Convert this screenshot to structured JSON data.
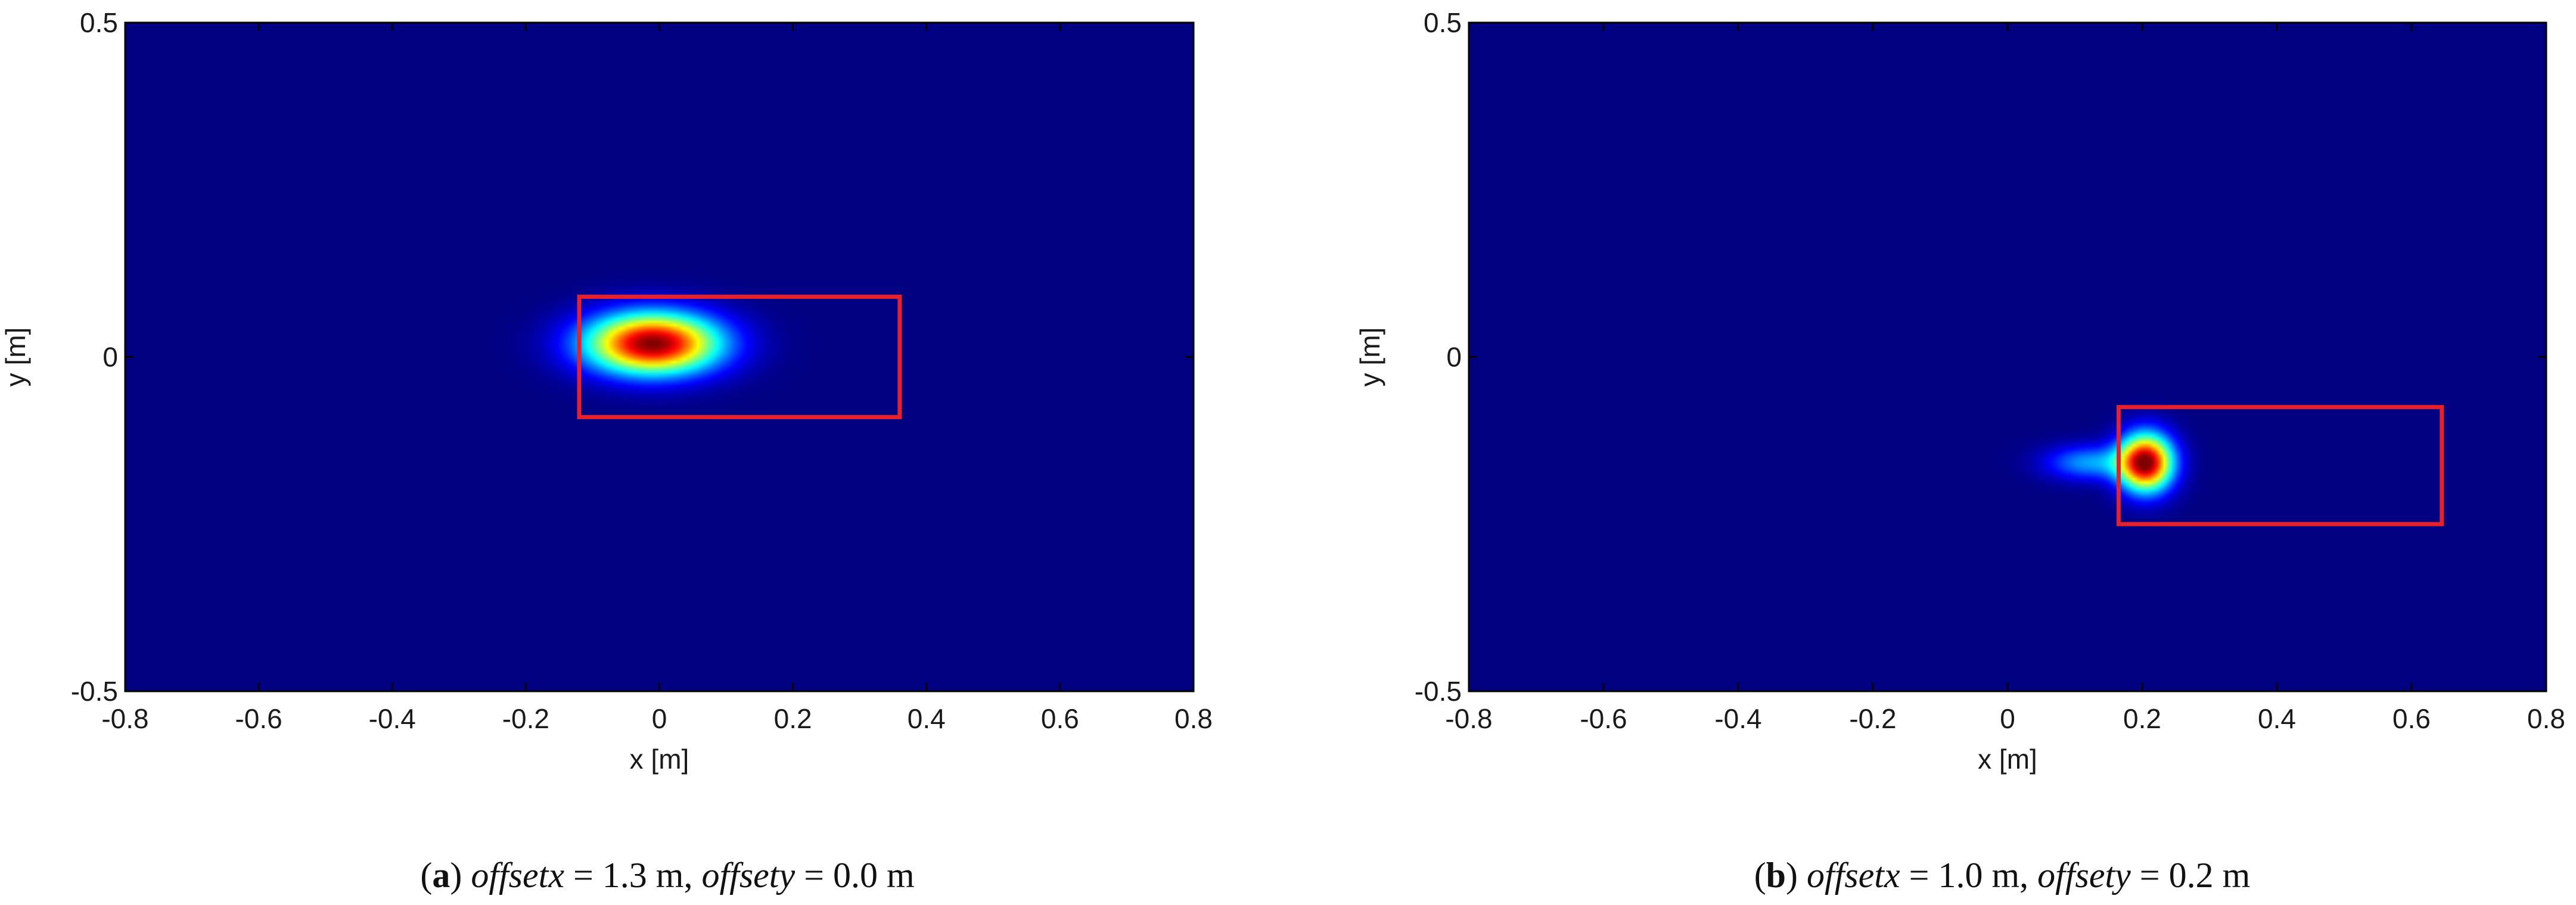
{
  "chart_data": [
    {
      "type": "heatmap",
      "panel_label": "a",
      "caption": {
        "label": "a",
        "parts": [
          {
            "text": "offsetx",
            "style": "italic"
          },
          {
            "text": " = 1.3 m, ",
            "style": "normal"
          },
          {
            "text": "offsety",
            "style": "italic"
          },
          {
            "text": " = 0.0 m",
            "style": "normal"
          }
        ]
      },
      "xlabel": "x [m]",
      "ylabel": "y [m]",
      "xlim": [
        -0.8,
        0.8
      ],
      "ylim": [
        -0.5,
        0.5
      ],
      "xticks": [
        -0.8,
        -0.6,
        -0.4,
        -0.2,
        0,
        0.2,
        0.4,
        0.6,
        0.8
      ],
      "xtick_labels": [
        "-0.8",
        "-0.6",
        "-0.4",
        "-0.2",
        "0",
        "0.2",
        "0.4",
        "0.6",
        "0.8"
      ],
      "yticks": [
        -0.5,
        0,
        0.5
      ],
      "ytick_labels": [
        "-0.5",
        "0",
        "0.5"
      ],
      "grid": false,
      "colormap": "jet",
      "background_color": "#00008f",
      "peaks": [
        {
          "x": -0.01,
          "y": 0.02,
          "sx": 0.07,
          "sy": 0.032,
          "amplitude": 1.0
        }
      ],
      "rectangle": {
        "x0": -0.12,
        "x1": 0.36,
        "y0": -0.09,
        "y1": 0.09,
        "color": "#e8202a"
      }
    },
    {
      "type": "heatmap",
      "panel_label": "b",
      "caption": {
        "label": "b",
        "parts": [
          {
            "text": "offsetx",
            "style": "italic"
          },
          {
            "text": " = 1.0 m, ",
            "style": "normal"
          },
          {
            "text": "offsety",
            "style": "italic"
          },
          {
            "text": " = 0.2 m",
            "style": "normal"
          }
        ]
      },
      "xlabel": "x [m]",
      "ylabel": "y [m]",
      "xlim": [
        -0.8,
        0.8
      ],
      "ylim": [
        -0.5,
        0.5
      ],
      "xticks": [
        -0.8,
        -0.6,
        -0.4,
        -0.2,
        0,
        0.2,
        0.4,
        0.6,
        0.8
      ],
      "xtick_labels": [
        "-0.8",
        "-0.6",
        "-0.4",
        "-0.2",
        "0",
        "0.2",
        "0.4",
        "0.6",
        "0.8"
      ],
      "yticks": [
        -0.5,
        0,
        0.5
      ],
      "ytick_labels": [
        "-0.5",
        "0",
        "0.5"
      ],
      "grid": false,
      "colormap": "jet",
      "background_color": "#00008f",
      "peaks": [
        {
          "x": 0.205,
          "y": -0.158,
          "sx": 0.028,
          "sy": 0.03,
          "amplitude": 1.0
        },
        {
          "x": 0.12,
          "y": -0.158,
          "sx": 0.045,
          "sy": 0.018,
          "amplitude": 0.28
        }
      ],
      "rectangle": {
        "x0": 0.165,
        "x1": 0.645,
        "y0": -0.25,
        "y1": -0.075,
        "color": "#e8202a"
      }
    }
  ]
}
